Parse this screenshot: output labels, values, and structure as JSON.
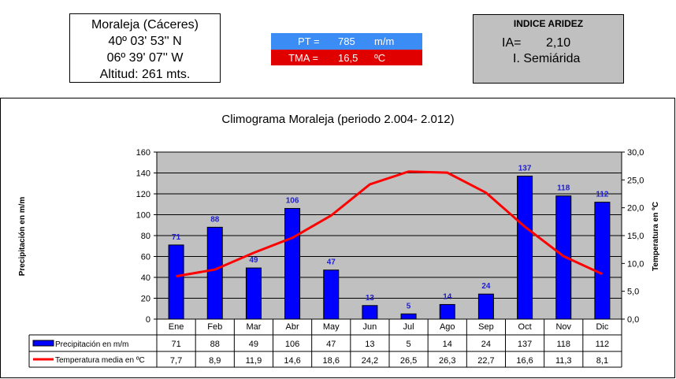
{
  "location": {
    "name": "Moraleja (Cáceres)",
    "lat": "40º 03' 53'' N",
    "lon": "06º 39' 07''  W",
    "alt": "Altitud: 261 mts."
  },
  "summary": {
    "pt_label": "PT =",
    "pt_value": "785",
    "pt_unit": "m/m",
    "tma_label": "TMA =",
    "tma_value": "16,5",
    "tma_unit": "ºC"
  },
  "aridity": {
    "title": "INDICE ARIDEZ",
    "ia_label": "IA=",
    "ia_value": "2,10",
    "classification": "I. Semiárida"
  },
  "colors": {
    "bar": "#0000ff",
    "line": "#ff0000",
    "plot_bg": "#c0c0c0",
    "label_blue": "#1f1fcf"
  },
  "chart_data": {
    "type": "bar+line",
    "title": "Climograma Moraleja (periodo 2.004- 2.012)",
    "ylabel": "Precipitación en m/m",
    "y2label": "Temperatura en ºC",
    "ylim": [
      0,
      160
    ],
    "y2lim": [
      0,
      30
    ],
    "yticks": [
      "0",
      "20",
      "40",
      "60",
      "80",
      "100",
      "120",
      "140",
      "160"
    ],
    "y2ticks": [
      "0,0",
      "5,0",
      "10,0",
      "15,0",
      "20,0",
      "25,0",
      "30,0"
    ],
    "categories": [
      "Ene",
      "Feb",
      "Mar",
      "Abr",
      "May",
      "Jun",
      "Jul",
      "Ago",
      "Sep",
      "Oct",
      "Nov",
      "Dic"
    ],
    "series": [
      {
        "name": "Precipitación en m/m",
        "type": "bar",
        "values": [
          71,
          88,
          49,
          106,
          47,
          13,
          5,
          14,
          24,
          137,
          118,
          112
        ],
        "labels": [
          "71",
          "88",
          "49",
          "106",
          "47",
          "13",
          "5",
          "14",
          "24",
          "137",
          "118",
          "112"
        ]
      },
      {
        "name": "Temperatura media en ºC",
        "type": "line",
        "values": [
          7.7,
          8.9,
          11.9,
          14.6,
          18.6,
          24.2,
          26.5,
          26.3,
          22.7,
          16.6,
          11.3,
          8.1
        ],
        "labels": [
          "7,7",
          "8,9",
          "11,9",
          "14,6",
          "18,6",
          "24,2",
          "26,5",
          "26,3",
          "22,7",
          "16,6",
          "11,3",
          "8,1"
        ]
      }
    ],
    "grid": true,
    "legend": "data table below plot"
  }
}
